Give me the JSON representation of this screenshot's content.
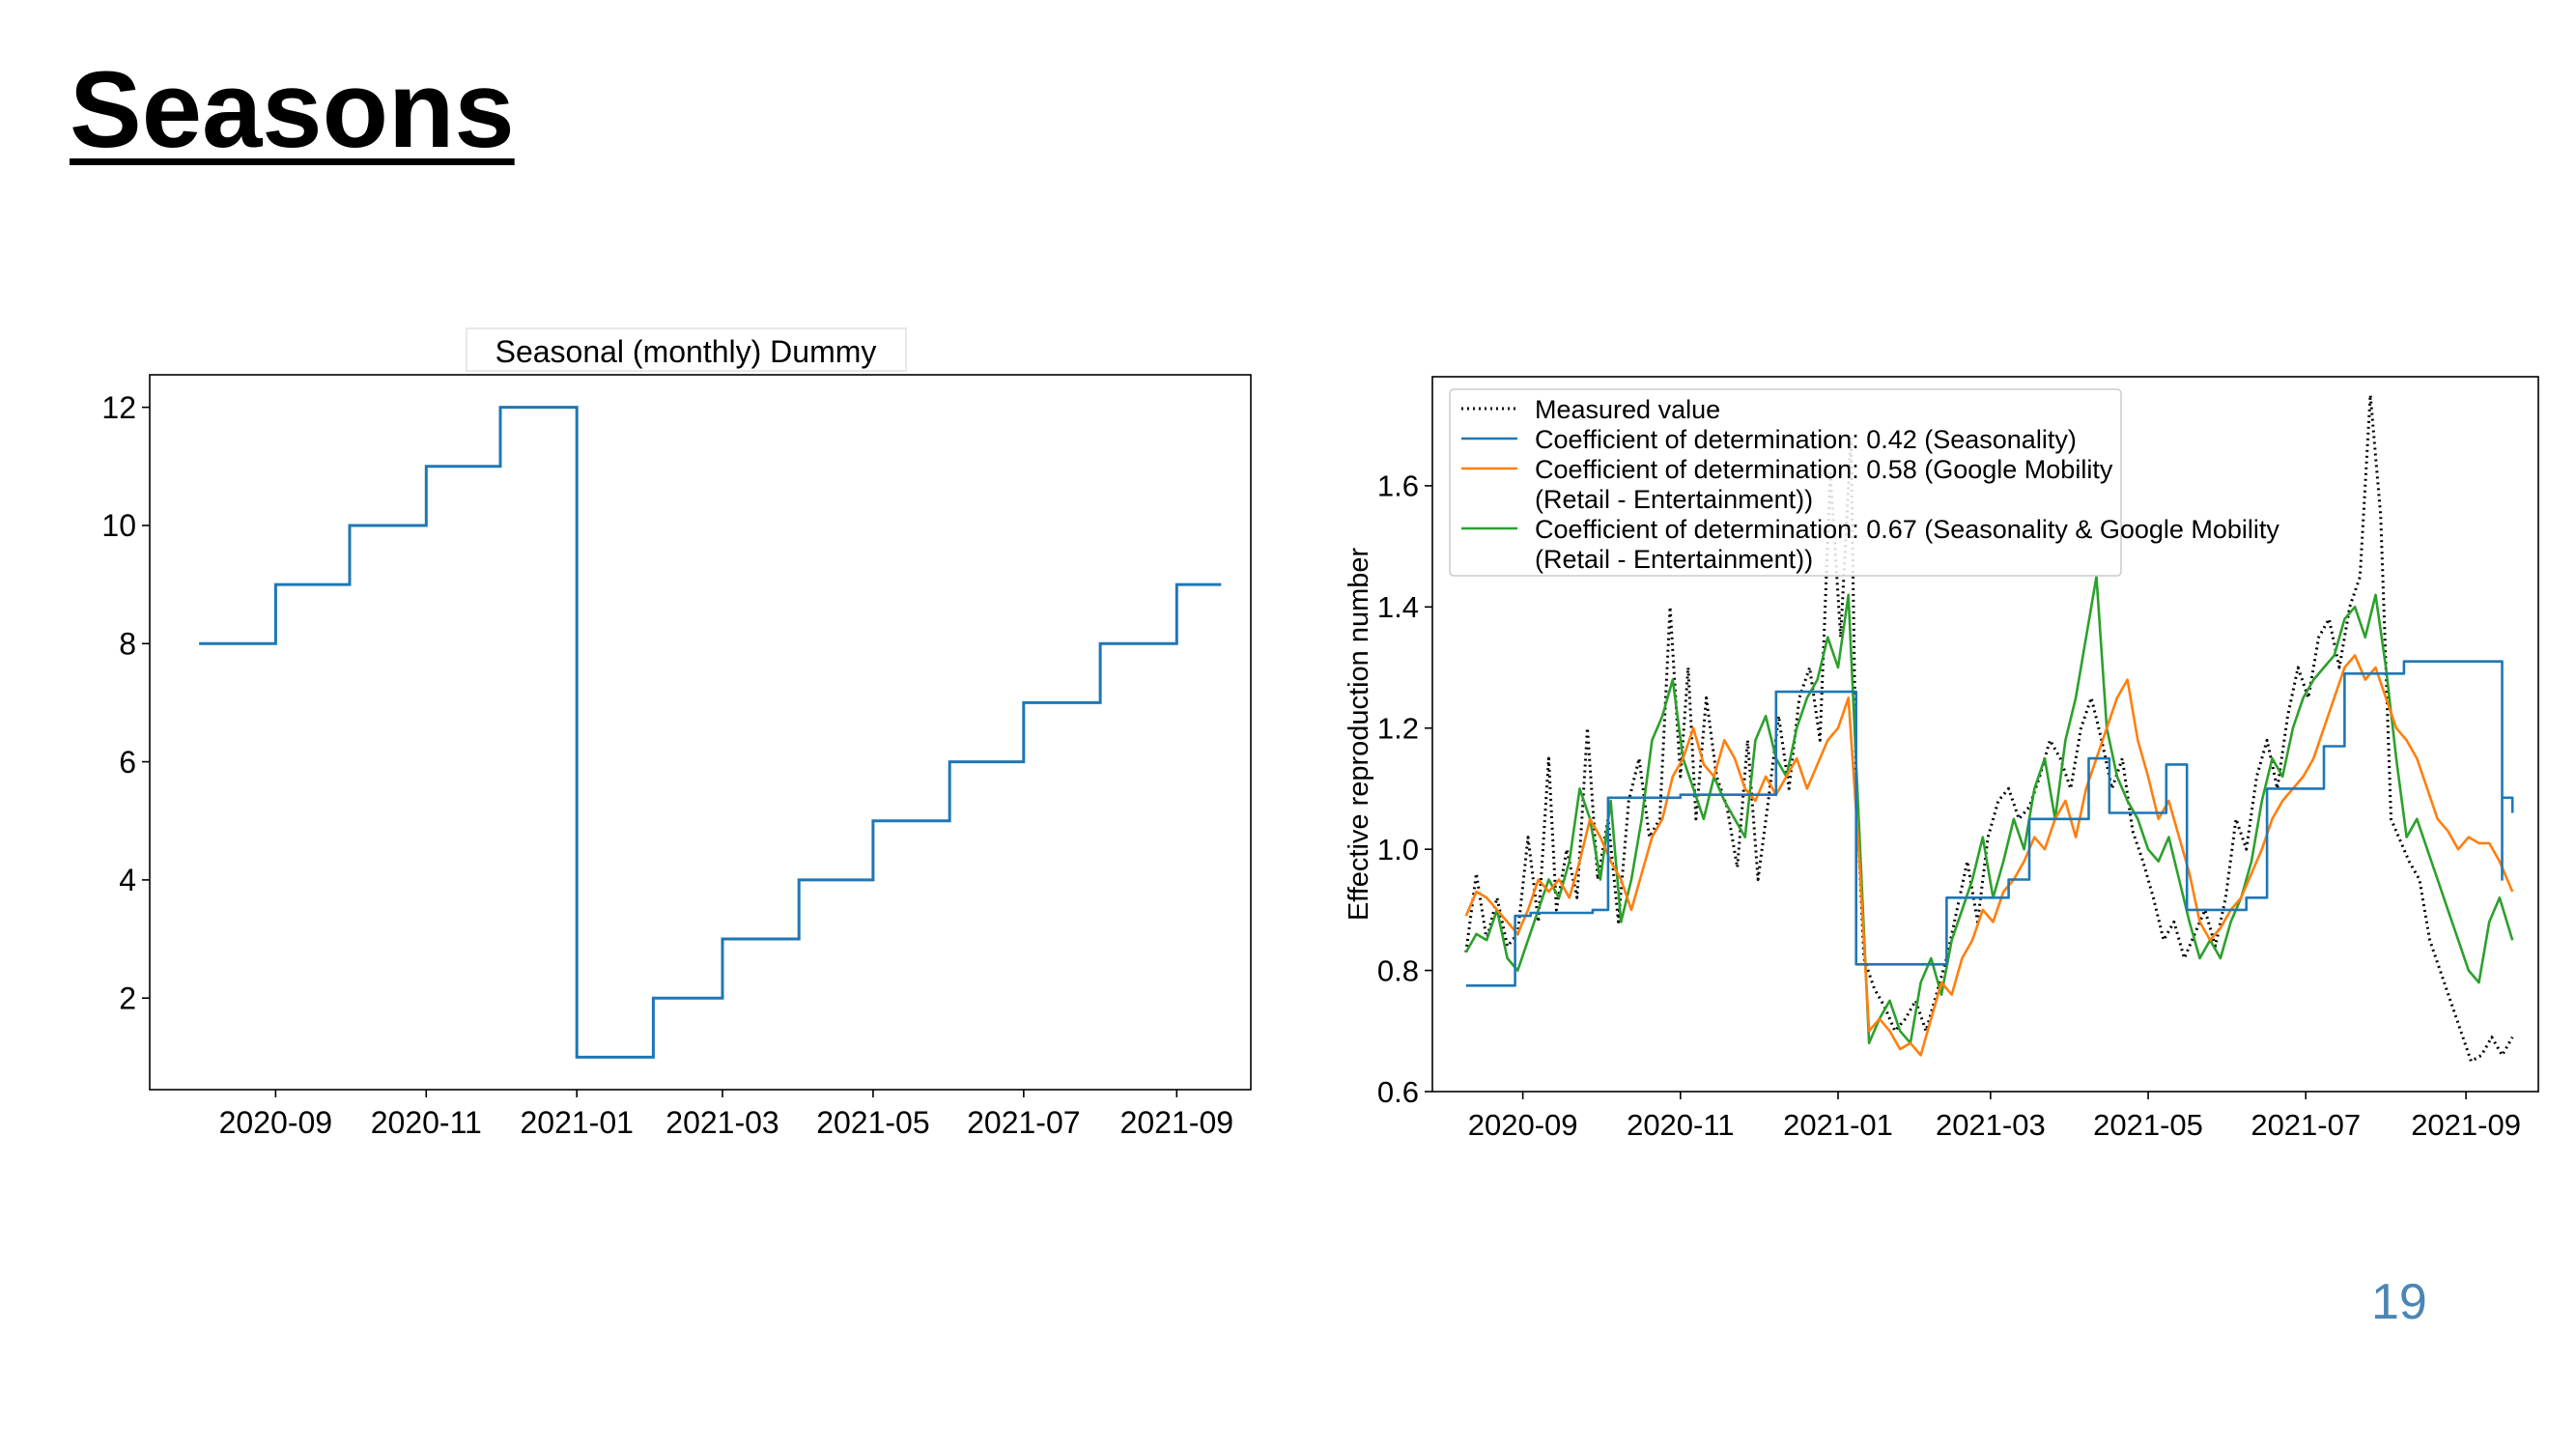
{
  "slide": {
    "title": "Seasons",
    "page_number": "19"
  },
  "chart_data": [
    {
      "type": "line",
      "title": "Seasonal (monthly) Dummy",
      "xlabel": "",
      "ylabel": "",
      "xlim": [
        "2020-07-12",
        "2021-10-01"
      ],
      "ylim": [
        0.45,
        12.55
      ],
      "yticks": [
        2,
        4,
        6,
        8,
        10,
        12
      ],
      "xticks": [
        "2020-09",
        "2020-11",
        "2021-01",
        "2021-03",
        "2021-05",
        "2021-07",
        "2021-09"
      ],
      "grid": false,
      "series": [
        {
          "color": "#1f77b4",
          "step": "post",
          "x": [
            "2020-08-01",
            "2020-09-01",
            "2020-10-01",
            "2020-11-01",
            "2020-12-01",
            "2021-01-01",
            "2021-02-01",
            "2021-03-01",
            "2021-04-01",
            "2021-05-01",
            "2021-06-01",
            "2021-07-01",
            "2021-08-01",
            "2021-09-01",
            "2021-09-19"
          ],
          "values": [
            8,
            9,
            10,
            11,
            12,
            1,
            2,
            3,
            4,
            5,
            6,
            7,
            8,
            9,
            9
          ]
        }
      ]
    },
    {
      "type": "line",
      "title": "",
      "xlabel": "",
      "ylabel": "Effective reproduction number",
      "xlim": [
        "2020-07-28",
        "2021-09-29"
      ],
      "ylim": [
        0.6,
        1.78
      ],
      "yticks": [
        0.6,
        0.8,
        1.0,
        1.2,
        1.4,
        1.6
      ],
      "ytick_labels": [
        "0.6",
        "0.8",
        "1.0",
        "1.2",
        "1.4",
        "1.6"
      ],
      "xticks": [
        "2020-09",
        "2020-11",
        "2021-01",
        "2021-03",
        "2021-05",
        "2021-07",
        "2021-09"
      ],
      "grid": false,
      "legend_position": "top-left",
      "legend_labels": [
        [
          "Measured value"
        ],
        [
          "Coefficient of determination: 0.42 (Seasonality)"
        ],
        [
          "Coefficient of determination: 0.58 (Google Mobility",
          "(Retail - Entertainment))"
        ],
        [
          "Coefficient of determination: 0.67 (Seasonality & Google Mobility",
          "(Retail - Entertainment))"
        ]
      ],
      "series": [
        {
          "color": "#000000",
          "style": "dotted",
          "x": [
            "2020-08-10",
            "2020-08-14",
            "2020-08-18",
            "2020-08-22",
            "2020-08-26",
            "2020-08-30",
            "2020-09-03",
            "2020-09-07",
            "2020-09-11",
            "2020-09-14",
            "2020-09-18",
            "2020-09-22",
            "2020-09-26",
            "2020-09-30",
            "2020-10-04",
            "2020-10-08",
            "2020-10-12",
            "2020-10-16",
            "2020-10-20",
            "2020-10-24",
            "2020-10-28",
            "2020-11-01",
            "2020-11-04",
            "2020-11-07",
            "2020-11-11",
            "2020-11-15",
            "2020-11-19",
            "2020-11-23",
            "2020-11-27",
            "2020-12-01",
            "2020-12-05",
            "2020-12-09",
            "2020-12-13",
            "2020-12-17",
            "2020-12-21",
            "2020-12-25",
            "2020-12-29",
            "2021-01-02",
            "2021-01-06",
            "2021-01-08",
            "2021-01-11",
            "2021-01-15",
            "2021-01-19",
            "2021-01-23",
            "2021-01-27",
            "2021-01-31",
            "2021-02-04",
            "2021-02-08",
            "2021-02-12",
            "2021-02-16",
            "2021-02-20",
            "2021-02-24",
            "2021-02-28",
            "2021-03-04",
            "2021-03-08",
            "2021-03-12",
            "2021-03-16",
            "2021-03-20",
            "2021-03-24",
            "2021-03-28",
            "2021-04-01",
            "2021-04-05",
            "2021-04-09",
            "2021-04-13",
            "2021-04-17",
            "2021-04-21",
            "2021-04-25",
            "2021-04-29",
            "2021-05-03",
            "2021-05-07",
            "2021-05-11",
            "2021-05-15",
            "2021-05-19",
            "2021-05-23",
            "2021-05-27",
            "2021-05-31",
            "2021-06-04",
            "2021-06-08",
            "2021-06-12",
            "2021-06-16",
            "2021-06-20",
            "2021-06-24",
            "2021-06-28",
            "2021-07-02",
            "2021-07-06",
            "2021-07-10",
            "2021-07-14",
            "2021-07-18",
            "2021-07-22",
            "2021-07-26",
            "2021-07-30",
            "2021-08-01",
            "2021-08-03",
            "2021-08-06",
            "2021-08-10",
            "2021-08-14",
            "2021-08-18",
            "2021-08-22",
            "2021-08-26",
            "2021-08-30",
            "2021-09-03",
            "2021-09-07",
            "2021-09-11",
            "2021-09-15",
            "2021-09-19"
          ],
          "values": [
            0.83,
            0.96,
            0.85,
            0.92,
            0.84,
            0.86,
            1.02,
            0.88,
            1.15,
            0.9,
            1.0,
            0.92,
            1.2,
            0.95,
            1.05,
            0.88,
            1.08,
            1.15,
            1.02,
            1.05,
            1.4,
            1.12,
            1.3,
            1.05,
            1.25,
            1.12,
            1.07,
            0.97,
            1.18,
            0.95,
            1.08,
            1.22,
            1.1,
            1.25,
            1.3,
            1.18,
            1.62,
            1.35,
            1.68,
            1.1,
            0.82,
            0.77,
            0.74,
            0.7,
            0.72,
            0.75,
            0.7,
            0.76,
            0.82,
            0.9,
            0.98,
            0.88,
            1.02,
            1.08,
            1.1,
            1.05,
            1.07,
            1.12,
            1.18,
            1.15,
            1.1,
            1.2,
            1.25,
            1.18,
            1.1,
            1.15,
            1.03,
            0.98,
            0.92,
            0.85,
            0.88,
            0.82,
            0.86,
            0.9,
            0.84,
            0.92,
            1.05,
            1.0,
            1.12,
            1.18,
            1.1,
            1.22,
            1.3,
            1.25,
            1.35,
            1.38,
            1.3,
            1.4,
            1.45,
            1.75,
            1.55,
            1.3,
            1.05,
            1.02,
            0.98,
            0.95,
            0.85,
            0.8,
            0.75,
            0.7,
            0.65,
            0.66,
            0.69,
            0.66,
            0.69
          ]
        },
        {
          "color": "#1f77b4",
          "style": "solid",
          "step": "post",
          "x": [
            "2020-08-10",
            "2020-08-29",
            "2020-08-29",
            "2020-09-04",
            "2020-09-04",
            "2020-09-28",
            "2020-09-28",
            "2020-10-04",
            "2020-10-04",
            "2020-11-01",
            "2020-11-01",
            "2020-12-01",
            "2020-12-01",
            "2020-12-08",
            "2020-12-08",
            "2021-01-08",
            "2021-01-08",
            "2021-02-08",
            "2021-02-08",
            "2021-02-12",
            "2021-02-12",
            "2021-03-08",
            "2021-03-08",
            "2021-03-16",
            "2021-03-16",
            "2021-04-08",
            "2021-04-08",
            "2021-04-16",
            "2021-04-16",
            "2021-05-08",
            "2021-05-08",
            "2021-05-16",
            "2021-05-16",
            "2021-06-08",
            "2021-06-08",
            "2021-06-16",
            "2021-06-16",
            "2021-07-08",
            "2021-07-08",
            "2021-07-16",
            "2021-07-16",
            "2021-08-08",
            "2021-08-08",
            "2021-09-15",
            "2021-09-15",
            "2021-09-19"
          ],
          "values": [
            0.775,
            0.775,
            0.89,
            0.89,
            0.895,
            0.895,
            0.9,
            0.9,
            1.085,
            1.085,
            1.09,
            1.09,
            1.09,
            1.09,
            1.26,
            1.26,
            0.81,
            0.81,
            0.81,
            0.81,
            0.92,
            0.92,
            0.95,
            0.95,
            1.05,
            1.05,
            1.15,
            1.15,
            1.06,
            1.06,
            1.14,
            1.14,
            0.9,
            0.9,
            0.92,
            0.92,
            1.1,
            1.1,
            1.17,
            1.17,
            1.29,
            1.29,
            1.31,
            0.95,
            1.085,
            1.06
          ]
        },
        {
          "color": "#ff7f0e",
          "style": "solid",
          "x": [
            "2020-08-10",
            "2020-08-14",
            "2020-08-18",
            "2020-08-22",
            "2020-08-26",
            "2020-08-30",
            "2020-09-03",
            "2020-09-07",
            "2020-09-11",
            "2020-09-15",
            "2020-09-19",
            "2020-09-23",
            "2020-09-27",
            "2020-10-01",
            "2020-10-05",
            "2020-10-09",
            "2020-10-13",
            "2020-10-17",
            "2020-10-21",
            "2020-10-25",
            "2020-10-29",
            "2020-11-02",
            "2020-11-06",
            "2020-11-10",
            "2020-11-14",
            "2020-11-18",
            "2020-11-22",
            "2020-11-26",
            "2020-11-30",
            "2020-12-04",
            "2020-12-08",
            "2020-12-12",
            "2020-12-16",
            "2020-12-20",
            "2020-12-24",
            "2020-12-28",
            "2021-01-01",
            "2021-01-05",
            "2021-01-09",
            "2021-01-13",
            "2021-01-17",
            "2021-01-21",
            "2021-01-25",
            "2021-01-29",
            "2021-02-02",
            "2021-02-06",
            "2021-02-10",
            "2021-02-14",
            "2021-02-18",
            "2021-02-22",
            "2021-02-26",
            "2021-03-02",
            "2021-03-06",
            "2021-03-10",
            "2021-03-14",
            "2021-03-18",
            "2021-03-22",
            "2021-03-26",
            "2021-03-30",
            "2021-04-03",
            "2021-04-07",
            "2021-04-11",
            "2021-04-15",
            "2021-04-19",
            "2021-04-23",
            "2021-04-27",
            "2021-05-01",
            "2021-05-05",
            "2021-05-09",
            "2021-05-13",
            "2021-05-17",
            "2021-05-21",
            "2021-05-25",
            "2021-05-29",
            "2021-06-02",
            "2021-06-06",
            "2021-06-10",
            "2021-06-14",
            "2021-06-18",
            "2021-06-22",
            "2021-06-26",
            "2021-06-30",
            "2021-07-04",
            "2021-07-08",
            "2021-07-12",
            "2021-07-16",
            "2021-07-20",
            "2021-07-24",
            "2021-07-28",
            "2021-08-01",
            "2021-08-05",
            "2021-08-09",
            "2021-08-13",
            "2021-08-17",
            "2021-08-21",
            "2021-08-25",
            "2021-08-29",
            "2021-09-02",
            "2021-09-06",
            "2021-09-10",
            "2021-09-14",
            "2021-09-19"
          ],
          "values": [
            0.89,
            0.93,
            0.92,
            0.9,
            0.88,
            0.86,
            0.9,
            0.95,
            0.93,
            0.95,
            0.92,
            0.98,
            1.05,
            1.02,
            0.98,
            0.95,
            0.9,
            0.96,
            1.02,
            1.05,
            1.12,
            1.15,
            1.2,
            1.14,
            1.12,
            1.18,
            1.15,
            1.1,
            1.08,
            1.12,
            1.09,
            1.12,
            1.15,
            1.1,
            1.14,
            1.18,
            1.2,
            1.25,
            1.0,
            0.7,
            0.72,
            0.7,
            0.67,
            0.68,
            0.66,
            0.72,
            0.78,
            0.76,
            0.82,
            0.85,
            0.9,
            0.88,
            0.93,
            0.95,
            0.98,
            1.02,
            1.0,
            1.05,
            1.08,
            1.02,
            1.1,
            1.15,
            1.2,
            1.25,
            1.28,
            1.18,
            1.12,
            1.05,
            1.08,
            1.02,
            0.96,
            0.88,
            0.85,
            0.87,
            0.9,
            0.92,
            0.96,
            1.0,
            1.05,
            1.08,
            1.1,
            1.12,
            1.15,
            1.2,
            1.25,
            1.3,
            1.32,
            1.28,
            1.3,
            1.25,
            1.2,
            1.18,
            1.15,
            1.1,
            1.05,
            1.03,
            1.0,
            1.02,
            1.01,
            1.01,
            0.98,
            0.93
          ]
        },
        {
          "color": "#2ca02c",
          "style": "solid",
          "x": [
            "2020-08-10",
            "2020-08-14",
            "2020-08-18",
            "2020-08-22",
            "2020-08-26",
            "2020-08-30",
            "2020-09-03",
            "2020-09-07",
            "2020-09-11",
            "2020-09-15",
            "2020-09-19",
            "2020-09-23",
            "2020-09-27",
            "2020-10-01",
            "2020-10-05",
            "2020-10-09",
            "2020-10-13",
            "2020-10-17",
            "2020-10-21",
            "2020-10-25",
            "2020-10-29",
            "2020-11-02",
            "2020-11-06",
            "2020-11-10",
            "2020-11-14",
            "2020-11-18",
            "2020-11-22",
            "2020-11-26",
            "2020-11-30",
            "2020-12-04",
            "2020-12-08",
            "2020-12-12",
            "2020-12-16",
            "2020-12-20",
            "2020-12-24",
            "2020-12-28",
            "2021-01-01",
            "2021-01-05",
            "2021-01-09",
            "2021-01-13",
            "2021-01-17",
            "2021-01-21",
            "2021-01-25",
            "2021-01-29",
            "2021-02-02",
            "2021-02-06",
            "2021-02-10",
            "2021-02-14",
            "2021-02-18",
            "2021-02-22",
            "2021-02-26",
            "2021-03-02",
            "2021-03-06",
            "2021-03-10",
            "2021-03-14",
            "2021-03-18",
            "2021-03-22",
            "2021-03-26",
            "2021-03-30",
            "2021-04-03",
            "2021-04-07",
            "2021-04-11",
            "2021-04-15",
            "2021-04-19",
            "2021-04-23",
            "2021-04-27",
            "2021-05-01",
            "2021-05-05",
            "2021-05-09",
            "2021-05-13",
            "2021-05-17",
            "2021-05-21",
            "2021-05-25",
            "2021-05-29",
            "2021-06-02",
            "2021-06-06",
            "2021-06-10",
            "2021-06-14",
            "2021-06-18",
            "2021-06-22",
            "2021-06-26",
            "2021-06-30",
            "2021-07-04",
            "2021-07-08",
            "2021-07-12",
            "2021-07-16",
            "2021-07-20",
            "2021-07-24",
            "2021-07-28",
            "2021-08-01",
            "2021-08-05",
            "2021-08-09",
            "2021-08-13",
            "2021-08-17",
            "2021-08-21",
            "2021-08-25",
            "2021-08-29",
            "2021-09-02",
            "2021-09-06",
            "2021-09-10",
            "2021-09-14",
            "2021-09-19"
          ],
          "values": [
            0.83,
            0.86,
            0.85,
            0.9,
            0.82,
            0.8,
            0.85,
            0.9,
            0.95,
            0.92,
            0.98,
            1.1,
            1.05,
            0.95,
            1.08,
            0.88,
            0.95,
            1.05,
            1.18,
            1.22,
            1.28,
            1.15,
            1.1,
            1.05,
            1.12,
            1.08,
            1.05,
            1.02,
            1.18,
            1.22,
            1.15,
            1.12,
            1.2,
            1.25,
            1.28,
            1.35,
            1.3,
            1.42,
            1.05,
            0.68,
            0.72,
            0.75,
            0.7,
            0.68,
            0.78,
            0.82,
            0.76,
            0.85,
            0.9,
            0.95,
            1.02,
            0.92,
            0.98,
            1.05,
            1.0,
            1.1,
            1.15,
            1.05,
            1.18,
            1.25,
            1.35,
            1.45,
            1.2,
            1.12,
            1.08,
            1.05,
            1.0,
            0.98,
            1.02,
            0.95,
            0.88,
            0.82,
            0.85,
            0.82,
            0.88,
            0.92,
            0.98,
            1.08,
            1.15,
            1.12,
            1.2,
            1.25,
            1.28,
            1.3,
            1.32,
            1.38,
            1.4,
            1.35,
            1.42,
            1.3,
            1.15,
            1.02,
            1.05,
            1.0,
            0.95,
            0.9,
            0.85,
            0.8,
            0.78,
            0.88,
            0.92,
            0.85
          ]
        }
      ]
    }
  ]
}
